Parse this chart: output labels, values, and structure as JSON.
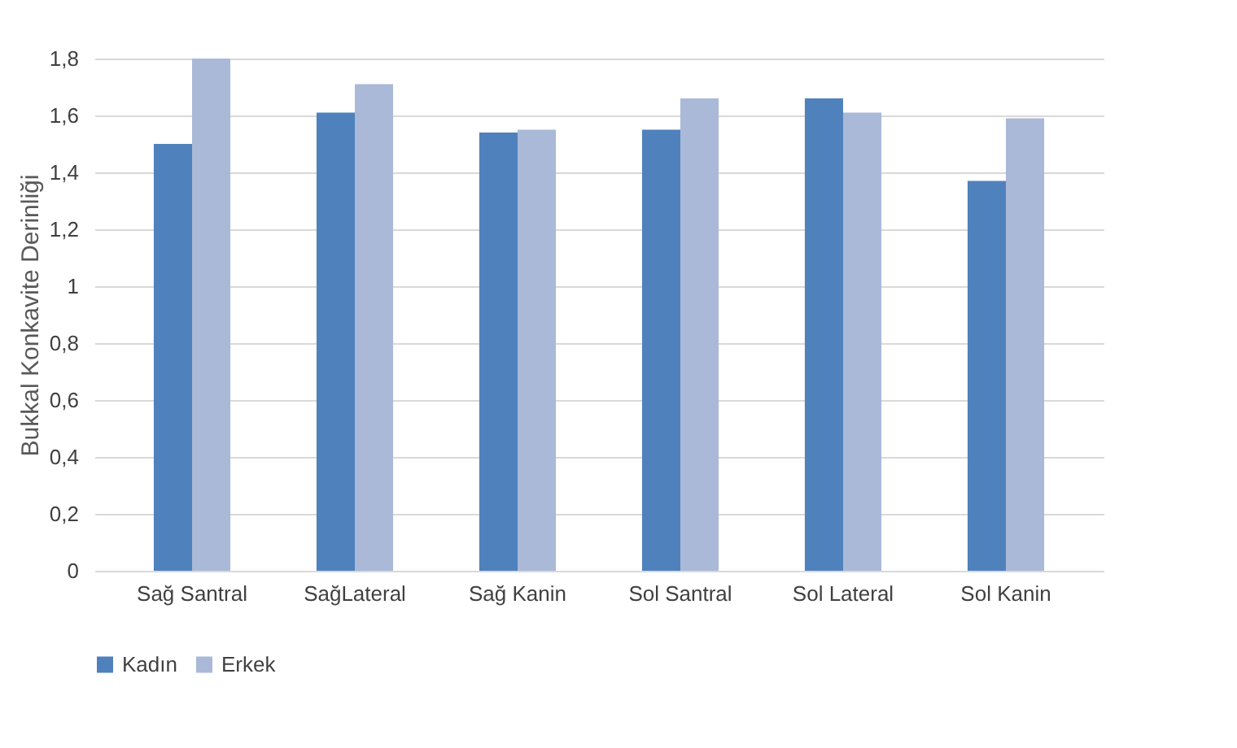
{
  "chart_data": {
    "type": "bar",
    "ylabel": "Bukkal Konkavite Derinliği",
    "categories": [
      "Sağ Santral",
      "SağLateral",
      "Sağ Kanin",
      "Sol Santral",
      "Sol Lateral",
      "Sol Kanin"
    ],
    "series": [
      {
        "name": "Kadın",
        "color": "#4f81bd",
        "values": [
          1.5,
          1.61,
          1.54,
          1.55,
          1.66,
          1.37
        ]
      },
      {
        "name": "Erkek",
        "color": "#aab9d7",
        "values": [
          1.8,
          1.71,
          1.55,
          1.66,
          1.61,
          1.59
        ]
      }
    ],
    "ylim": [
      0,
      1.8
    ],
    "yticks": [
      {
        "value": 0,
        "label": "0"
      },
      {
        "value": 0.2,
        "label": "0,2"
      },
      {
        "value": 0.4,
        "label": "0,4"
      },
      {
        "value": 0.6,
        "label": "0,6"
      },
      {
        "value": 0.8,
        "label": "0,8"
      },
      {
        "value": 1,
        "label": "1"
      },
      {
        "value": 1.2,
        "label": "1,2"
      },
      {
        "value": 1.4,
        "label": "1,4"
      },
      {
        "value": 1.6,
        "label": "1,6"
      },
      {
        "value": 1.8,
        "label": "1,8"
      }
    ],
    "grid": true,
    "legend": "bottom"
  }
}
